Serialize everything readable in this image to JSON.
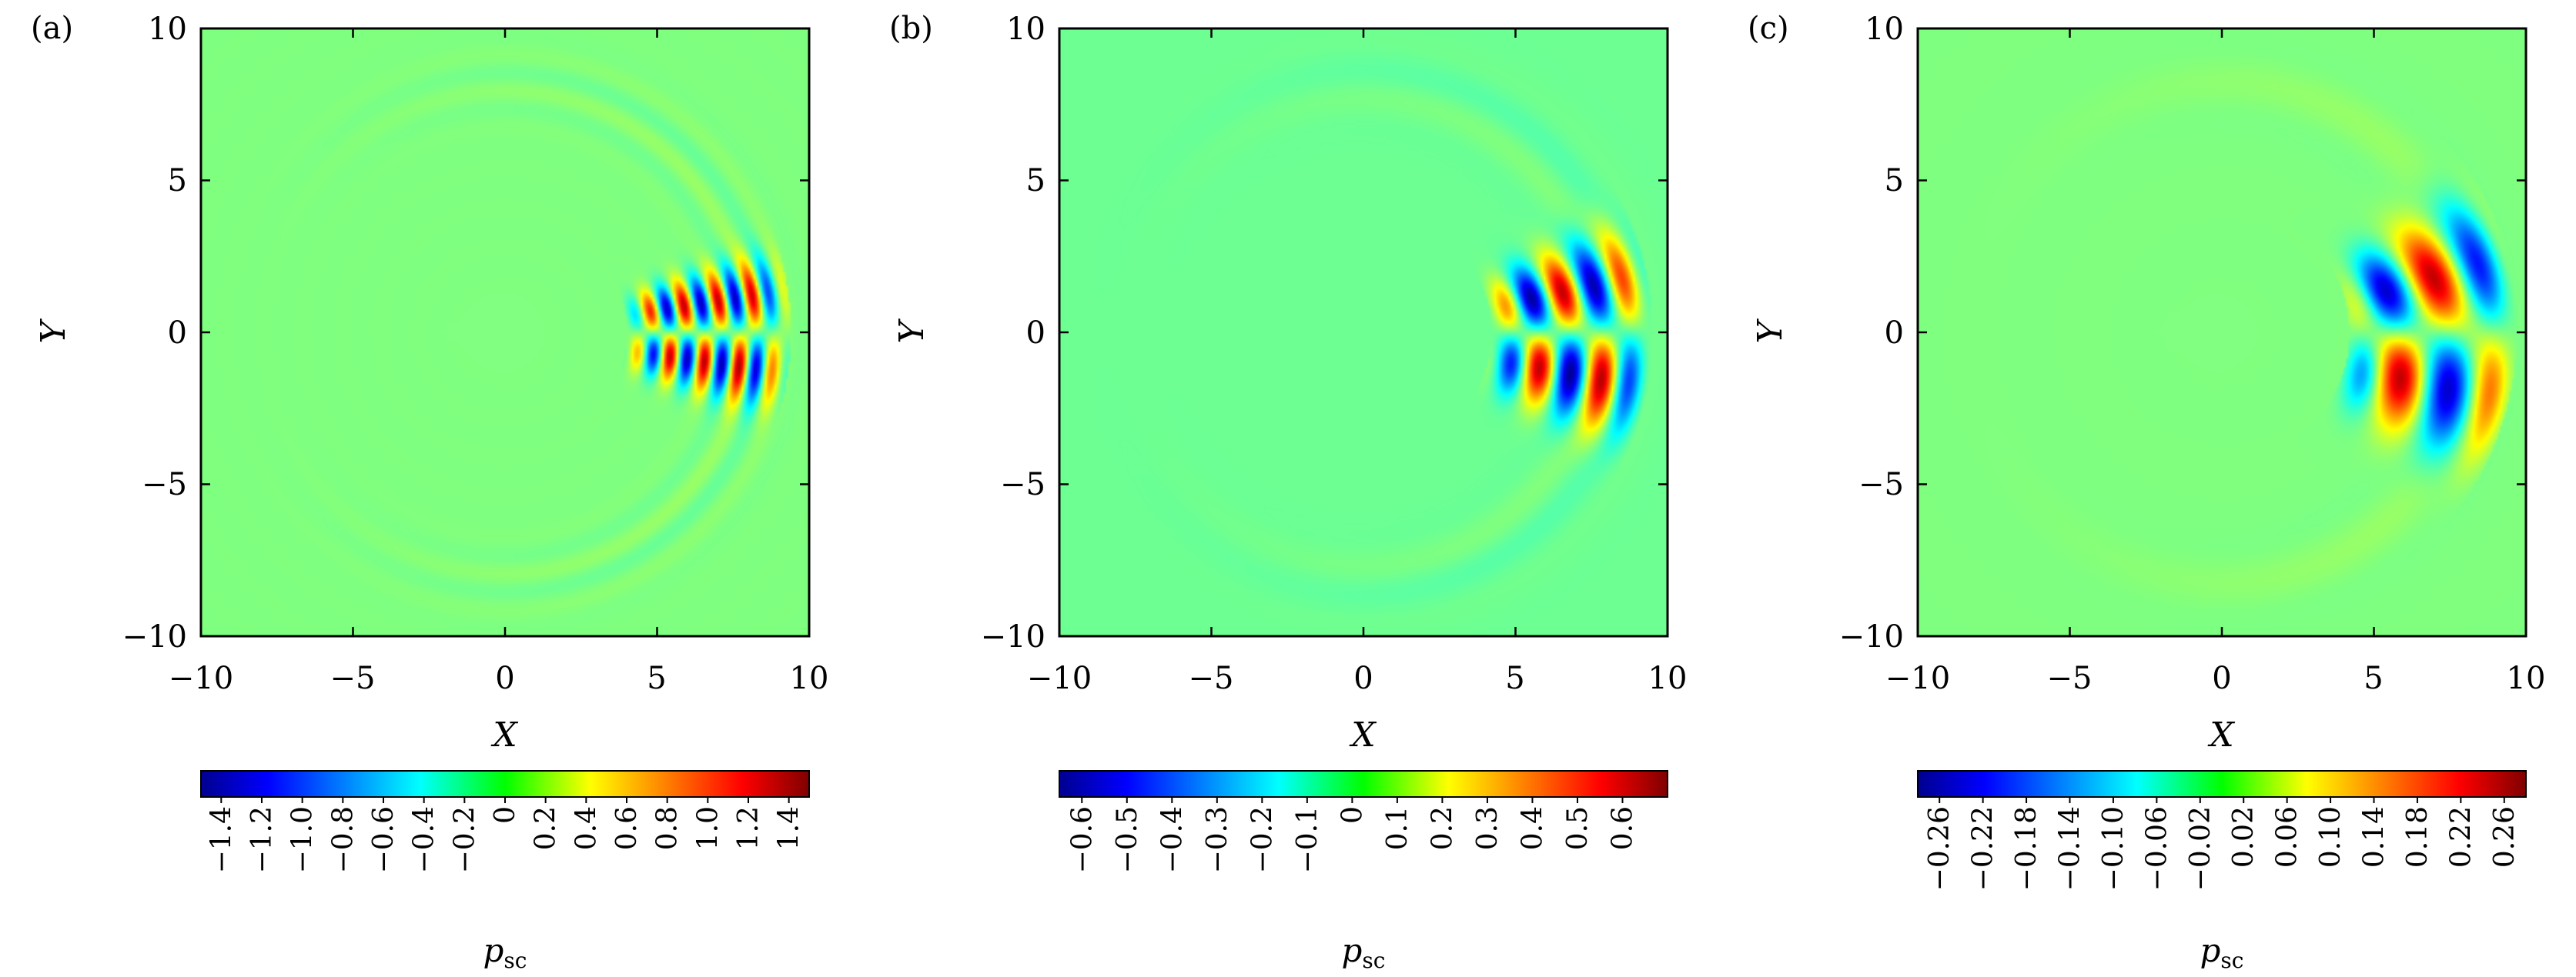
{
  "chart_data": [
    {
      "type": "heatmap",
      "panel_label": "(a)",
      "xlabel": "X",
      "ylabel": "Y",
      "xlim": [
        -10,
        10
      ],
      "ylim": [
        -10,
        10
      ],
      "xticks": [
        "−10",
        "−5",
        "0",
        "5",
        "10"
      ],
      "yticks": [
        "10",
        "5",
        "0",
        "−5",
        "−10"
      ],
      "colorbar": {
        "label_main": "p",
        "label_sub": "sc",
        "range": [
          -1.5,
          1.5
        ],
        "ticks": [
          "−1.4",
          "−1.2",
          "−1.0",
          "−0.8",
          "−0.6",
          "−0.4",
          "−0.2",
          "0",
          "0.2",
          "0.4",
          "0.6",
          "0.8",
          "1.0",
          "1.2",
          "1.4"
        ]
      },
      "field": {
        "wavenumber": 5.5,
        "r_inner": 4.6,
        "r_outer": 8.8,
        "half_angle_deg": 22,
        "bands": [
          1,
          -1
        ],
        "peak": 1.45
      }
    },
    {
      "type": "heatmap",
      "panel_label": "(b)",
      "xlabel": "X",
      "ylabel": "Y",
      "xlim": [
        -10,
        10
      ],
      "ylim": [
        -10,
        10
      ],
      "xticks": [
        "−10",
        "−5",
        "0",
        "5",
        "10"
      ],
      "yticks": [
        "10",
        "5",
        "0",
        "−5",
        "−10"
      ],
      "colorbar": {
        "label_main": "p",
        "label_sub": "sc",
        "range": [
          -0.65,
          0.7
        ],
        "ticks": [
          "−0.6",
          "−0.5",
          "−0.4",
          "−0.3",
          "−0.2",
          "−0.1",
          "0",
          "0.1",
          "0.2",
          "0.3",
          "0.4",
          "0.5",
          "0.6"
        ]
      },
      "field": {
        "wavenumber": 3.0,
        "r_inner": 4.8,
        "r_outer": 8.9,
        "half_angle_deg": 30,
        "bands": [
          1,
          -1
        ],
        "peak": 0.68
      }
    },
    {
      "type": "heatmap",
      "panel_label": "(c)",
      "xlabel": "X",
      "ylabel": "Y",
      "xlim": [
        -10,
        10
      ],
      "ylim": [
        -10,
        10
      ],
      "xticks": [
        "−10",
        "−5",
        "0",
        "5",
        "10"
      ],
      "yticks": [
        "10",
        "5",
        "0",
        "−5",
        "−10"
      ],
      "colorbar": {
        "label_main": "p",
        "label_sub": "sc",
        "range": [
          -0.28,
          0.28
        ],
        "ticks": [
          "−0.26",
          "−0.22",
          "−0.18",
          "−0.14",
          "−0.10",
          "−0.06",
          "−0.02",
          "0.02",
          "0.06",
          "0.10",
          "0.14",
          "0.18",
          "0.22",
          "0.26"
        ]
      },
      "field": {
        "wavenumber": 1.9,
        "r_inner": 4.8,
        "r_outer": 9.1,
        "half_angle_deg": 38,
        "bands": [
          1,
          -1
        ],
        "peak": 0.27
      }
    }
  ]
}
